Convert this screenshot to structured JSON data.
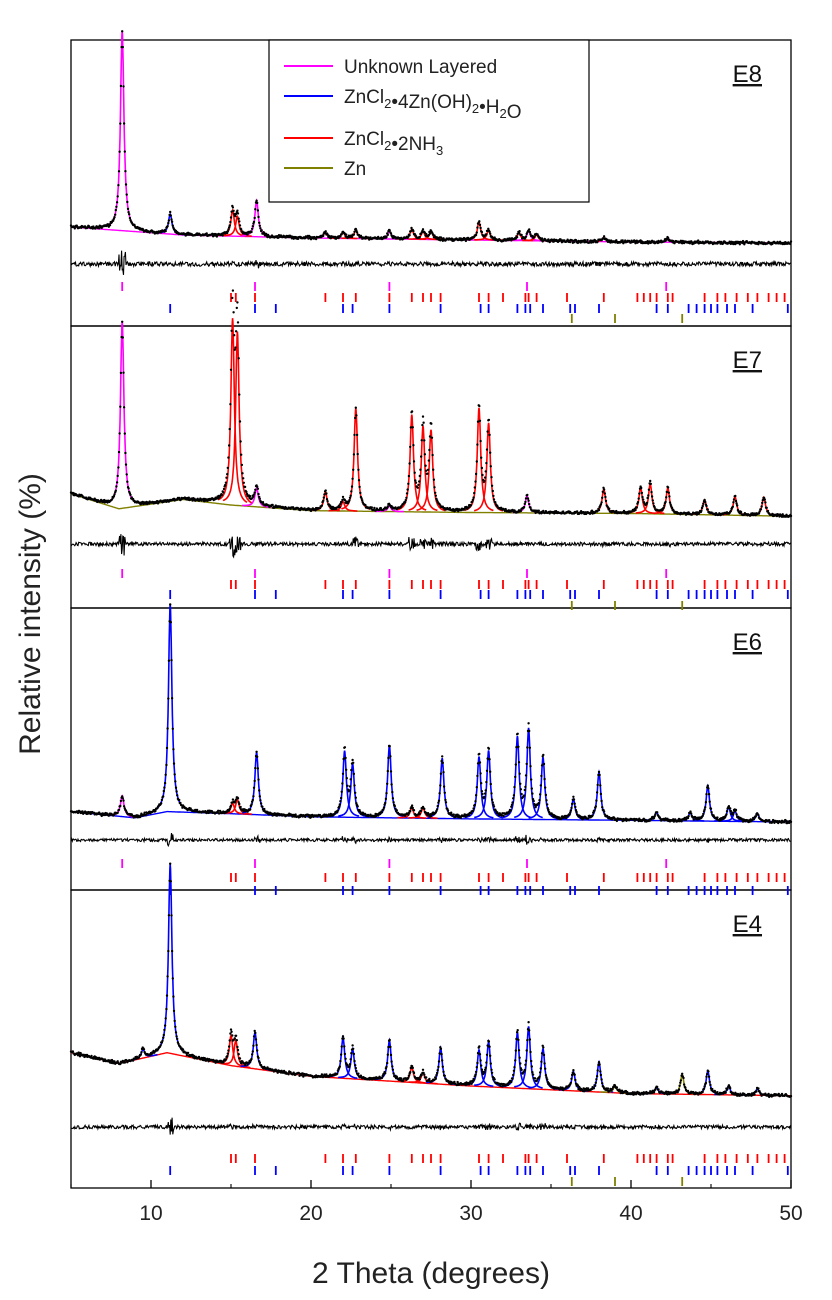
{
  "chart_data": {
    "type": "line",
    "title": "",
    "xlabel": "2 Theta (degrees)",
    "ylabel": "Relative intensity (%)",
    "xlim": [
      5,
      50
    ],
    "xticks": [
      "10",
      "20",
      "30",
      "40",
      "50"
    ],
    "xtick_values": [
      10,
      20,
      30,
      40,
      50
    ],
    "legend": [
      {
        "name": "Unknown Layered",
        "color": "#ff00ff",
        "parts": [
          {
            "t": "Unknown Layered",
            "sub": false
          }
        ]
      },
      {
        "name": "ZnCl2•4Zn(OH)2•H2O",
        "color": "#0000ff",
        "parts": [
          {
            "t": "ZnCl",
            "sub": false
          },
          {
            "t": "2",
            "sub": true
          },
          {
            "t": "•4Zn(OH)",
            "sub": false
          },
          {
            "t": "2",
            "sub": true
          },
          {
            "t": "•H",
            "sub": false
          },
          {
            "t": "2",
            "sub": true
          },
          {
            "t": "O",
            "sub": false
          }
        ]
      },
      {
        "name": "ZnCl2•2NH3",
        "color": "#ff0000",
        "parts": [
          {
            "t": "ZnCl",
            "sub": false
          },
          {
            "t": "2",
            "sub": true
          },
          {
            "t": "•2NH",
            "sub": false
          },
          {
            "t": "3",
            "sub": true
          }
        ]
      },
      {
        "name": "Zn",
        "color": "#808000",
        "parts": [
          {
            "t": "Zn",
            "sub": false
          }
        ]
      }
    ],
    "reflections": {
      "Unknown Layered": [
        8.2,
        16.5,
        24.9,
        33.5,
        42.2
      ],
      "ZnCl2•2NH3": [
        15.0,
        15.3,
        16.5,
        20.9,
        22.0,
        22.8,
        24.9,
        26.3,
        27.0,
        27.5,
        28.1,
        30.5,
        31.1,
        32.0,
        33.4,
        33.6,
        34.1,
        36.0,
        38.3,
        40.4,
        40.8,
        41.2,
        41.6,
        42.3,
        42.6,
        44.6,
        45.4,
        45.9,
        46.6,
        47.3,
        47.9,
        48.6,
        49.1,
        49.6
      ],
      "ZnCl2•4Zn(OH)2•H2O": [
        11.2,
        16.5,
        17.8,
        22.0,
        22.6,
        24.9,
        28.1,
        30.6,
        31.1,
        32.9,
        33.4,
        33.7,
        34.5,
        36.2,
        36.5,
        38.0,
        41.6,
        42.3,
        43.6,
        44.1,
        44.6,
        45.0,
        45.4,
        46.0,
        46.5,
        47.6,
        49.8
      ],
      "Zn": [
        36.3,
        39.0,
        43.2
      ]
    },
    "panels": [
      {
        "label": "E8",
        "dominant_phase": "Unknown Layered",
        "peaks": [
          {
            "x": 8.2,
            "h": 1.0,
            "phase": "Unknown Layered"
          },
          {
            "x": 11.2,
            "h": 0.1,
            "phase": "ZnCl2•4Zn(OH)2•H2O"
          },
          {
            "x": 15.1,
            "h": 0.13,
            "phase": "ZnCl2•2NH3"
          },
          {
            "x": 15.4,
            "h": 0.1,
            "phase": "ZnCl2•2NH3"
          },
          {
            "x": 16.6,
            "h": 0.18,
            "phase": "Unknown Layered"
          },
          {
            "x": 20.9,
            "h": 0.03,
            "phase": "ZnCl2•2NH3"
          },
          {
            "x": 22.0,
            "h": 0.03,
            "phase": "ZnCl2•2NH3"
          },
          {
            "x": 22.8,
            "h": 0.04,
            "phase": "ZnCl2•2NH3"
          },
          {
            "x": 24.9,
            "h": 0.04,
            "phase": "Unknown Layered"
          },
          {
            "x": 26.3,
            "h": 0.05,
            "phase": "ZnCl2•2NH3"
          },
          {
            "x": 27.0,
            "h": 0.04,
            "phase": "ZnCl2•2NH3"
          },
          {
            "x": 27.5,
            "h": 0.04,
            "phase": "ZnCl2•2NH3"
          },
          {
            "x": 30.5,
            "h": 0.09,
            "phase": "ZnCl2•2NH3"
          },
          {
            "x": 31.1,
            "h": 0.05,
            "phase": "ZnCl2•2NH3"
          },
          {
            "x": 33.0,
            "h": 0.04,
            "phase": "ZnCl2•2NH3"
          },
          {
            "x": 33.6,
            "h": 0.05,
            "phase": "Unknown Layered"
          },
          {
            "x": 34.1,
            "h": 0.03,
            "phase": "ZnCl2•2NH3"
          },
          {
            "x": 38.3,
            "h": 0.02,
            "phase": "ZnCl2•2NH3"
          },
          {
            "x": 42.3,
            "h": 0.02,
            "phase": "Unknown Layered"
          }
        ],
        "background": [
          [
            5,
            0.08
          ],
          [
            12,
            0.04
          ],
          [
            20,
            0.025
          ],
          [
            30,
            0.015
          ],
          [
            40,
            0.005
          ],
          [
            50,
            0.0
          ]
        ]
      },
      {
        "label": "E7",
        "dominant_phase": "ZnCl2•2NH3",
        "peaks": [
          {
            "x": 8.2,
            "h": 1.0,
            "phase": "Unknown Layered"
          },
          {
            "x": 15.1,
            "h": 1.0,
            "phase": "ZnCl2•2NH3"
          },
          {
            "x": 15.4,
            "h": 0.93,
            "phase": "ZnCl2•2NH3"
          },
          {
            "x": 16.6,
            "h": 0.1,
            "phase": "Unknown Layered"
          },
          {
            "x": 20.9,
            "h": 0.1,
            "phase": "ZnCl2•2NH3"
          },
          {
            "x": 22.0,
            "h": 0.05,
            "phase": "ZnCl2•2NH3"
          },
          {
            "x": 22.8,
            "h": 0.55,
            "phase": "ZnCl2•2NH3"
          },
          {
            "x": 24.9,
            "h": 0.03,
            "phase": "Unknown Layered"
          },
          {
            "x": 26.3,
            "h": 0.52,
            "phase": "ZnCl2•2NH3"
          },
          {
            "x": 27.0,
            "h": 0.46,
            "phase": "ZnCl2•2NH3"
          },
          {
            "x": 27.5,
            "h": 0.44,
            "phase": "ZnCl2•2NH3"
          },
          {
            "x": 30.5,
            "h": 0.56,
            "phase": "ZnCl2•2NH3"
          },
          {
            "x": 31.1,
            "h": 0.48,
            "phase": "ZnCl2•2NH3"
          },
          {
            "x": 33.5,
            "h": 0.09,
            "phase": "Unknown Layered"
          },
          {
            "x": 38.3,
            "h": 0.13,
            "phase": "ZnCl2•2NH3"
          },
          {
            "x": 40.6,
            "h": 0.14,
            "phase": "ZnCl2•2NH3"
          },
          {
            "x": 41.2,
            "h": 0.16,
            "phase": "ZnCl2•2NH3"
          },
          {
            "x": 42.3,
            "h": 0.14,
            "phase": "ZnCl2•2NH3"
          },
          {
            "x": 44.6,
            "h": 0.08,
            "phase": "ZnCl2•2NH3"
          },
          {
            "x": 46.5,
            "h": 0.1,
            "phase": "ZnCl2•2NH3"
          },
          {
            "x": 48.3,
            "h": 0.1,
            "phase": "ZnCl2•2NH3"
          }
        ],
        "background": [
          [
            5,
            0.14
          ],
          [
            8,
            0.06
          ],
          [
            12,
            0.11
          ],
          [
            15,
            0.08
          ],
          [
            20,
            0.05
          ],
          [
            30,
            0.04
          ],
          [
            40,
            0.035
          ],
          [
            50,
            0.02
          ]
        ]
      },
      {
        "label": "E6",
        "dominant_phase": "ZnCl2•4Zn(OH)2•H2O",
        "peaks": [
          {
            "x": 8.2,
            "h": 0.1,
            "phase": "Unknown Layered"
          },
          {
            "x": 11.2,
            "h": 1.0,
            "phase": "ZnCl2•4Zn(OH)2•H2O"
          },
          {
            "x": 15.1,
            "h": 0.05,
            "phase": "ZnCl2•2NH3"
          },
          {
            "x": 15.4,
            "h": 0.07,
            "phase": "ZnCl2•2NH3"
          },
          {
            "x": 16.6,
            "h": 0.3,
            "phase": "ZnCl2•4Zn(OH)2•H2O"
          },
          {
            "x": 22.1,
            "h": 0.32,
            "phase": "ZnCl2•4Zn(OH)2•H2O"
          },
          {
            "x": 22.6,
            "h": 0.26,
            "phase": "ZnCl2•4Zn(OH)2•H2O"
          },
          {
            "x": 24.9,
            "h": 0.35,
            "phase": "ZnCl2•4Zn(OH)2•H2O"
          },
          {
            "x": 26.3,
            "h": 0.05,
            "phase": "ZnCl2•2NH3"
          },
          {
            "x": 27.0,
            "h": 0.05,
            "phase": "ZnCl2•2NH3"
          },
          {
            "x": 28.2,
            "h": 0.29,
            "phase": "ZnCl2•4Zn(OH)2•H2O"
          },
          {
            "x": 30.5,
            "h": 0.3,
            "phase": "ZnCl2•4Zn(OH)2•H2O"
          },
          {
            "x": 31.1,
            "h": 0.33,
            "phase": "ZnCl2•4Zn(OH)2•H2O"
          },
          {
            "x": 32.9,
            "h": 0.4,
            "phase": "ZnCl2•4Zn(OH)2•H2O"
          },
          {
            "x": 33.6,
            "h": 0.44,
            "phase": "ZnCl2•4Zn(OH)2•H2O"
          },
          {
            "x": 34.5,
            "h": 0.3,
            "phase": "ZnCl2•4Zn(OH)2•H2O"
          },
          {
            "x": 36.4,
            "h": 0.1,
            "phase": "ZnCl2•4Zn(OH)2•H2O"
          },
          {
            "x": 38.0,
            "h": 0.23,
            "phase": "ZnCl2•4Zn(OH)2•H2O"
          },
          {
            "x": 41.6,
            "h": 0.04,
            "phase": "ZnCl2•4Zn(OH)2•H2O"
          },
          {
            "x": 43.7,
            "h": 0.04,
            "phase": "ZnCl2•4Zn(OH)2•H2O"
          },
          {
            "x": 44.8,
            "h": 0.17,
            "phase": "ZnCl2•4Zn(OH)2•H2O"
          },
          {
            "x": 46.1,
            "h": 0.07,
            "phase": "ZnCl2•4Zn(OH)2•H2O"
          },
          {
            "x": 46.5,
            "h": 0.05,
            "phase": "ZnCl2•4Zn(OH)2•H2O"
          },
          {
            "x": 47.9,
            "h": 0.04,
            "phase": "ZnCl2•4Zn(OH)2•H2O"
          }
        ],
        "background": [
          [
            5,
            0.05
          ],
          [
            9,
            0.02
          ],
          [
            11,
            0.05
          ],
          [
            15,
            0.04
          ],
          [
            20,
            0.025
          ],
          [
            30,
            0.015
          ],
          [
            40,
            0.008
          ],
          [
            50,
            0.0
          ]
        ]
      },
      {
        "label": "E4",
        "dominant_phase": "ZnCl2•4Zn(OH)2•H2O",
        "peaks": [
          {
            "x": 9.5,
            "h": 0.04,
            "phase": "ZnCl2•4Zn(OH)2•H2O"
          },
          {
            "x": 11.2,
            "h": 0.88,
            "phase": "ZnCl2•4Zn(OH)2•H2O"
          },
          {
            "x": 15.0,
            "h": 0.14,
            "phase": "ZnCl2•2NH3"
          },
          {
            "x": 15.3,
            "h": 0.12,
            "phase": "ZnCl2•2NH3"
          },
          {
            "x": 16.5,
            "h": 0.17,
            "phase": "ZnCl2•4Zn(OH)2•H2O"
          },
          {
            "x": 22.0,
            "h": 0.19,
            "phase": "ZnCl2•4Zn(OH)2•H2O"
          },
          {
            "x": 22.6,
            "h": 0.14,
            "phase": "ZnCl2•4Zn(OH)2•H2O"
          },
          {
            "x": 24.9,
            "h": 0.19,
            "phase": "ZnCl2•4Zn(OH)2•H2O"
          },
          {
            "x": 26.3,
            "h": 0.07,
            "phase": "ZnCl2•2NH3"
          },
          {
            "x": 27.0,
            "h": 0.05,
            "phase": "ZnCl2•2NH3"
          },
          {
            "x": 28.1,
            "h": 0.17,
            "phase": "ZnCl2•4Zn(OH)2•H2O"
          },
          {
            "x": 30.5,
            "h": 0.17,
            "phase": "ZnCl2•4Zn(OH)2•H2O"
          },
          {
            "x": 31.1,
            "h": 0.21,
            "phase": "ZnCl2•4Zn(OH)2•H2O"
          },
          {
            "x": 32.9,
            "h": 0.26,
            "phase": "ZnCl2•4Zn(OH)2•H2O"
          },
          {
            "x": 33.6,
            "h": 0.29,
            "phase": "ZnCl2•4Zn(OH)2•H2O"
          },
          {
            "x": 34.5,
            "h": 0.19,
            "phase": "ZnCl2•4Zn(OH)2•H2O"
          },
          {
            "x": 36.4,
            "h": 0.09,
            "phase": "ZnCl2•4Zn(OH)2•H2O"
          },
          {
            "x": 38.0,
            "h": 0.14,
            "phase": "ZnCl2•4Zn(OH)2•H2O"
          },
          {
            "x": 39.0,
            "h": 0.03,
            "phase": "Zn"
          },
          {
            "x": 41.6,
            "h": 0.03,
            "phase": "ZnCl2•4Zn(OH)2•H2O"
          },
          {
            "x": 43.2,
            "h": 0.09,
            "phase": "Zn"
          },
          {
            "x": 44.8,
            "h": 0.11,
            "phase": "ZnCl2•4Zn(OH)2•H2O"
          },
          {
            "x": 46.1,
            "h": 0.04,
            "phase": "ZnCl2•4Zn(OH)2•H2O"
          },
          {
            "x": 47.9,
            "h": 0.03,
            "phase": "ZnCl2•4Zn(OH)2•H2O"
          }
        ],
        "background": [
          [
            5,
            0.22
          ],
          [
            8,
            0.17
          ],
          [
            11,
            0.22
          ],
          [
            15,
            0.16
          ],
          [
            20,
            0.11
          ],
          [
            30,
            0.065
          ],
          [
            40,
            0.03
          ],
          [
            50,
            0.02
          ]
        ]
      }
    ]
  }
}
